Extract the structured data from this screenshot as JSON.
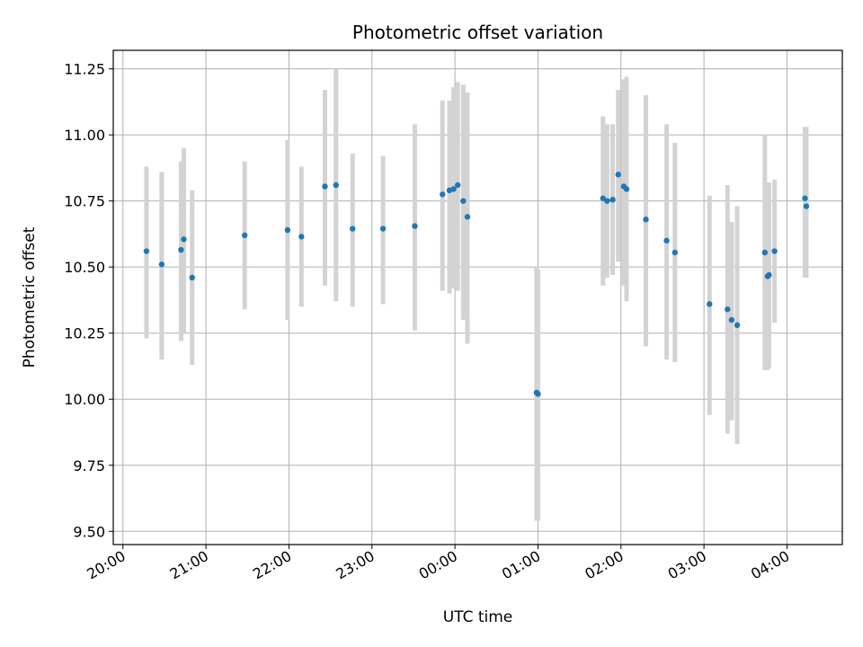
{
  "chart_data": {
    "type": "scatter",
    "title": "Photometric offset variation",
    "xlabel": "UTC time",
    "ylabel": "Photometric offset",
    "x_type": "time",
    "xlim": [
      "19:53",
      "04:40"
    ],
    "ylim": [
      9.45,
      11.32
    ],
    "x_ticks": [
      "20:00",
      "21:00",
      "22:00",
      "23:00",
      "00:00",
      "01:00",
      "02:00",
      "03:00",
      "04:00"
    ],
    "y_ticks": [
      "9.50",
      "9.75",
      "10.00",
      "10.25",
      "10.50",
      "10.75",
      "11.00",
      "11.25"
    ],
    "grid": true,
    "colors": {
      "points": "#1f77b4",
      "error_bars": "#d3d3d3",
      "grid": "#b0b0b0"
    },
    "series": [
      {
        "points": [
          {
            "t": "20:17",
            "y": 10.56,
            "lo": 10.23,
            "hi": 10.88
          },
          {
            "t": "20:28",
            "y": 10.51,
            "lo": 10.15,
            "hi": 10.86
          },
          {
            "t": "20:42",
            "y": 10.565,
            "lo": 10.22,
            "hi": 10.9
          },
          {
            "t": "20:44",
            "y": 10.605,
            "lo": 10.25,
            "hi": 10.95
          },
          {
            "t": "20:50",
            "y": 10.46,
            "lo": 10.13,
            "hi": 10.79
          },
          {
            "t": "21:28",
            "y": 10.62,
            "lo": 10.34,
            "hi": 10.9
          },
          {
            "t": "21:59",
            "y": 10.64,
            "lo": 10.3,
            "hi": 10.98
          },
          {
            "t": "22:09",
            "y": 10.615,
            "lo": 10.35,
            "hi": 10.88
          },
          {
            "t": "22:26",
            "y": 10.805,
            "lo": 10.43,
            "hi": 11.17
          },
          {
            "t": "22:34",
            "y": 10.81,
            "lo": 10.37,
            "hi": 11.25
          },
          {
            "t": "22:46",
            "y": 10.645,
            "lo": 10.35,
            "hi": 10.93
          },
          {
            "t": "23:08",
            "y": 10.645,
            "lo": 10.36,
            "hi": 10.92
          },
          {
            "t": "23:31",
            "y": 10.655,
            "lo": 10.26,
            "hi": 11.04
          },
          {
            "t": "23:51",
            "y": 10.775,
            "lo": 10.41,
            "hi": 11.13
          },
          {
            "t": "23:56",
            "y": 10.79,
            "lo": 10.4,
            "hi": 11.13
          },
          {
            "t": "23:59",
            "y": 10.795,
            "lo": 10.42,
            "hi": 11.18
          },
          {
            "t": "00:02",
            "y": 10.81,
            "lo": 10.41,
            "hi": 11.2
          },
          {
            "t": "00:06",
            "y": 10.75,
            "lo": 10.3,
            "hi": 11.19
          },
          {
            "t": "00:09",
            "y": 10.69,
            "lo": 10.21,
            "hi": 11.16
          },
          {
            "t": "00:59",
            "y": 10.025,
            "lo": 9.54,
            "hi": 10.5
          },
          {
            "t": "01:00",
            "y": 10.02,
            "lo": 9.54,
            "hi": 10.49
          },
          {
            "t": "01:47",
            "y": 10.76,
            "lo": 10.43,
            "hi": 11.07
          },
          {
            "t": "01:50",
            "y": 10.75,
            "lo": 10.46,
            "hi": 11.04
          },
          {
            "t": "01:54",
            "y": 10.755,
            "lo": 10.47,
            "hi": 11.04
          },
          {
            "t": "01:58",
            "y": 10.85,
            "lo": 10.52,
            "hi": 11.17
          },
          {
            "t": "02:02",
            "y": 10.805,
            "lo": 10.43,
            "hi": 11.21
          },
          {
            "t": "02:04",
            "y": 10.795,
            "lo": 10.37,
            "hi": 11.22
          },
          {
            "t": "02:18",
            "y": 10.68,
            "lo": 10.2,
            "hi": 11.15
          },
          {
            "t": "02:33",
            "y": 10.6,
            "lo": 10.15,
            "hi": 11.04
          },
          {
            "t": "02:39",
            "y": 10.555,
            "lo": 10.14,
            "hi": 10.97
          },
          {
            "t": "03:04",
            "y": 10.36,
            "lo": 9.94,
            "hi": 10.77
          },
          {
            "t": "03:17",
            "y": 10.34,
            "lo": 9.87,
            "hi": 10.81
          },
          {
            "t": "03:20",
            "y": 10.3,
            "lo": 9.92,
            "hi": 10.67
          },
          {
            "t": "03:24",
            "y": 10.28,
            "lo": 9.83,
            "hi": 10.73
          },
          {
            "t": "03:44",
            "y": 10.555,
            "lo": 10.11,
            "hi": 11.0
          },
          {
            "t": "03:46",
            "y": 10.465,
            "lo": 10.11,
            "hi": 10.82
          },
          {
            "t": "03:47",
            "y": 10.47,
            "lo": 10.12,
            "hi": 10.82
          },
          {
            "t": "03:51",
            "y": 10.56,
            "lo": 10.29,
            "hi": 10.83
          },
          {
            "t": "04:13",
            "y": 10.76,
            "lo": 10.46,
            "hi": 11.03
          },
          {
            "t": "04:14",
            "y": 10.73,
            "lo": 10.46,
            "hi": 11.03
          }
        ]
      }
    ]
  }
}
